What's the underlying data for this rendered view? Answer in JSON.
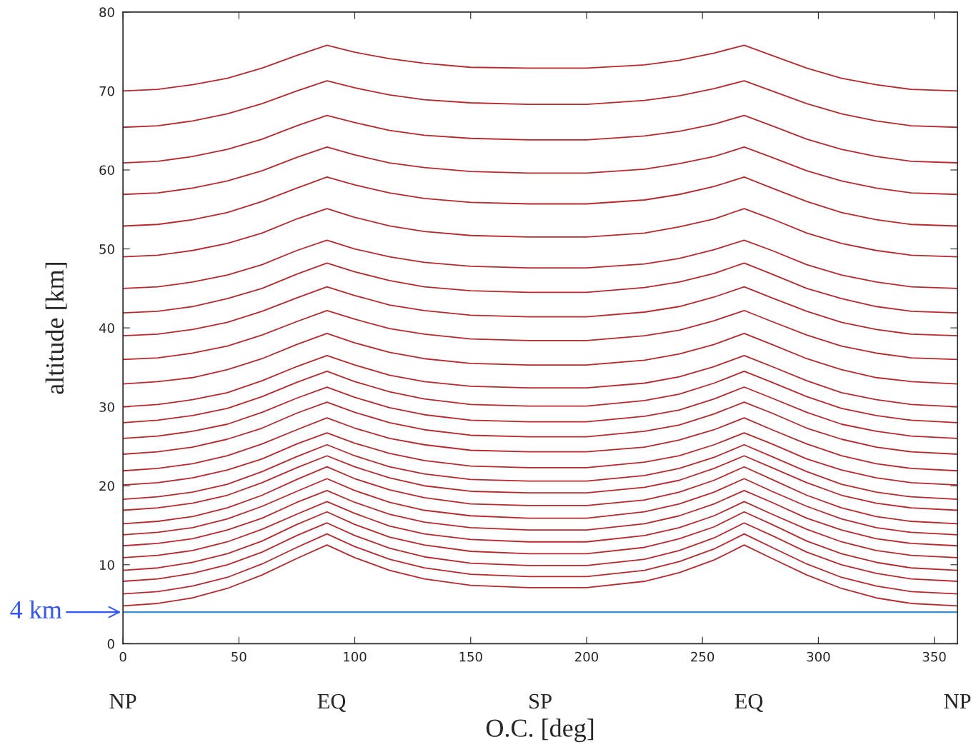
{
  "chart_data": {
    "type": "line",
    "xlabel": "O.C. [deg]",
    "ylabel": "altitude [km]",
    "x": [
      0,
      15,
      30,
      45,
      60,
      75,
      88,
      100,
      115,
      130,
      150,
      175,
      200,
      225,
      240,
      255,
      268,
      280,
      295,
      310,
      325,
      340,
      360
    ],
    "xlim": [
      0,
      360
    ],
    "xticks": [
      0,
      50,
      100,
      150,
      200,
      250,
      300,
      350
    ],
    "ylim": [
      0,
      80
    ],
    "yticks": [
      0,
      10,
      20,
      30,
      40,
      50,
      60,
      70,
      80
    ],
    "grid": false,
    "legend": false,
    "marker": "none",
    "line_style": "solid",
    "ref_lines": [
      {
        "axis": "y",
        "value": 4,
        "label": "4 km",
        "color": "#3a8fd0"
      }
    ],
    "annotations": [
      "NP",
      "EQ",
      "SP",
      "EQ",
      "NP"
    ],
    "series": [
      {
        "color": "#b8282d",
        "values": [
          70.0,
          70.2,
          70.8,
          71.6,
          72.9,
          74.5,
          75.8,
          74.9,
          74.1,
          73.5,
          73.0,
          72.9,
          72.9,
          73.3,
          73.9,
          74.8,
          75.8,
          74.5,
          72.9,
          71.6,
          70.8,
          70.2,
          70.0
        ]
      },
      {
        "color": "#b8282d",
        "values": [
          65.4,
          65.6,
          66.2,
          67.1,
          68.4,
          70.0,
          71.3,
          70.4,
          69.5,
          68.9,
          68.5,
          68.3,
          68.3,
          68.8,
          69.4,
          70.3,
          71.3,
          70.0,
          68.4,
          67.1,
          66.2,
          65.6,
          65.4
        ]
      },
      {
        "color": "#b8282d",
        "values": [
          60.9,
          61.1,
          61.7,
          62.6,
          63.9,
          65.6,
          66.9,
          66.0,
          65.0,
          64.4,
          64.0,
          63.8,
          63.8,
          64.3,
          64.9,
          65.8,
          66.9,
          65.6,
          63.9,
          62.6,
          61.7,
          61.1,
          60.9
        ]
      },
      {
        "color": "#b8282d",
        "values": [
          56.9,
          57.1,
          57.7,
          58.6,
          59.9,
          61.6,
          62.9,
          61.9,
          60.9,
          60.3,
          59.8,
          59.6,
          59.6,
          60.1,
          60.8,
          61.7,
          62.9,
          61.6,
          59.9,
          58.6,
          57.7,
          57.1,
          56.9
        ]
      },
      {
        "color": "#b8282d",
        "values": [
          52.9,
          53.1,
          53.7,
          54.6,
          56.0,
          57.7,
          59.1,
          58.1,
          57.1,
          56.4,
          55.9,
          55.7,
          55.7,
          56.2,
          56.9,
          57.9,
          59.1,
          57.7,
          56.0,
          54.6,
          53.7,
          53.1,
          52.9
        ]
      },
      {
        "color": "#b8282d",
        "values": [
          49.0,
          49.2,
          49.8,
          50.7,
          52.0,
          53.8,
          55.1,
          54.0,
          52.9,
          52.2,
          51.7,
          51.5,
          51.5,
          52.0,
          52.8,
          53.8,
          55.1,
          53.8,
          52.0,
          50.7,
          49.8,
          49.2,
          49.0
        ]
      },
      {
        "color": "#b8282d",
        "values": [
          45.0,
          45.2,
          45.8,
          46.7,
          48.0,
          49.8,
          51.1,
          50.0,
          49.0,
          48.3,
          47.8,
          47.6,
          47.6,
          48.1,
          48.8,
          49.9,
          51.1,
          49.8,
          48.0,
          46.7,
          45.8,
          45.2,
          45.0
        ]
      },
      {
        "color": "#b8282d",
        "values": [
          41.9,
          42.1,
          42.7,
          43.7,
          45.0,
          46.8,
          48.2,
          47.1,
          46.0,
          45.2,
          44.7,
          44.5,
          44.5,
          45.1,
          45.8,
          46.9,
          48.2,
          46.8,
          45.0,
          43.7,
          42.7,
          42.1,
          41.9
        ]
      },
      {
        "color": "#b8282d",
        "values": [
          39.0,
          39.2,
          39.8,
          40.7,
          42.1,
          43.8,
          45.2,
          44.1,
          42.9,
          42.2,
          41.6,
          41.4,
          41.4,
          42.0,
          42.7,
          43.9,
          45.2,
          43.8,
          42.1,
          40.7,
          39.8,
          39.2,
          39.0
        ]
      },
      {
        "color": "#b8282d",
        "values": [
          36.0,
          36.2,
          36.8,
          37.7,
          39.1,
          40.8,
          42.2,
          41.1,
          39.9,
          39.2,
          38.6,
          38.4,
          38.4,
          39.0,
          39.7,
          40.9,
          42.2,
          40.8,
          39.1,
          37.7,
          36.8,
          36.2,
          36.0
        ]
      },
      {
        "color": "#b8282d",
        "values": [
          32.9,
          33.2,
          33.7,
          34.7,
          36.1,
          37.9,
          39.3,
          38.1,
          36.9,
          36.1,
          35.5,
          35.3,
          35.3,
          35.9,
          36.7,
          37.9,
          39.3,
          37.9,
          36.1,
          34.7,
          33.7,
          33.2,
          32.9
        ]
      },
      {
        "color": "#b8282d",
        "values": [
          30.0,
          30.3,
          30.9,
          31.8,
          33.3,
          35.1,
          36.5,
          35.3,
          34.0,
          33.2,
          32.6,
          32.4,
          32.4,
          33.0,
          33.8,
          35.1,
          36.5,
          35.1,
          33.3,
          31.8,
          30.9,
          30.3,
          30.0
        ]
      },
      {
        "color": "#b8282d",
        "values": [
          28.0,
          28.3,
          28.9,
          29.8,
          31.3,
          33.1,
          34.5,
          33.2,
          31.9,
          31.0,
          30.3,
          30.1,
          30.1,
          30.8,
          31.6,
          33.0,
          34.5,
          33.1,
          31.3,
          29.8,
          28.9,
          28.3,
          28.0
        ]
      },
      {
        "color": "#b8282d",
        "values": [
          26.0,
          26.3,
          26.9,
          27.8,
          29.3,
          31.1,
          32.5,
          31.2,
          29.9,
          29.0,
          28.3,
          28.1,
          28.1,
          28.8,
          29.6,
          31.0,
          32.5,
          31.1,
          29.3,
          27.8,
          26.9,
          26.3,
          26.0
        ]
      },
      {
        "color": "#b8282d",
        "values": [
          24.0,
          24.3,
          24.9,
          25.9,
          27.3,
          29.2,
          30.6,
          29.3,
          28.0,
          27.1,
          26.4,
          26.2,
          26.2,
          26.9,
          27.7,
          29.1,
          30.6,
          29.2,
          27.3,
          25.9,
          24.9,
          24.3,
          24.0
        ]
      },
      {
        "color": "#b8282d",
        "values": [
          21.9,
          22.2,
          22.8,
          23.8,
          25.3,
          27.1,
          28.6,
          27.3,
          26.0,
          25.2,
          24.5,
          24.3,
          24.3,
          24.9,
          25.8,
          27.1,
          28.6,
          27.1,
          25.3,
          23.8,
          22.8,
          22.2,
          21.9
        ]
      },
      {
        "color": "#b8282d",
        "values": [
          20.1,
          20.4,
          21.0,
          22.0,
          23.4,
          25.3,
          26.7,
          25.4,
          24.1,
          23.2,
          22.5,
          22.3,
          22.3,
          23.0,
          23.8,
          25.2,
          26.7,
          25.3,
          23.4,
          22.0,
          21.0,
          20.4,
          20.1
        ]
      },
      {
        "color": "#b8282d",
        "values": [
          18.3,
          18.6,
          19.2,
          20.2,
          21.8,
          23.7,
          25.2,
          23.8,
          22.4,
          21.5,
          20.8,
          20.6,
          20.6,
          21.3,
          22.2,
          23.6,
          25.2,
          23.7,
          21.8,
          20.2,
          19.2,
          18.6,
          18.3
        ]
      },
      {
        "color": "#b8282d",
        "values": [
          16.9,
          17.2,
          17.8,
          18.8,
          20.4,
          22.3,
          23.8,
          22.4,
          21.0,
          20.0,
          19.3,
          19.1,
          19.1,
          19.8,
          20.7,
          22.2,
          23.8,
          22.3,
          20.4,
          18.8,
          17.8,
          17.2,
          16.9
        ]
      },
      {
        "color": "#b8282d",
        "values": [
          15.2,
          15.5,
          16.1,
          17.2,
          18.8,
          20.8,
          22.4,
          20.9,
          19.5,
          18.5,
          17.7,
          17.5,
          17.5,
          18.2,
          19.2,
          20.7,
          22.4,
          20.8,
          18.8,
          17.2,
          16.1,
          15.5,
          15.2
        ]
      },
      {
        "color": "#b8282d",
        "values": [
          13.8,
          14.1,
          14.7,
          15.8,
          17.4,
          19.3,
          20.9,
          19.4,
          17.9,
          16.9,
          16.2,
          15.9,
          15.9,
          16.7,
          17.7,
          19.2,
          20.9,
          19.3,
          17.4,
          15.8,
          14.7,
          14.1,
          13.8
        ]
      },
      {
        "color": "#b8282d",
        "values": [
          12.4,
          12.7,
          13.3,
          14.4,
          15.9,
          17.9,
          19.4,
          17.9,
          16.4,
          15.4,
          14.7,
          14.4,
          14.4,
          15.2,
          16.2,
          17.7,
          19.4,
          17.9,
          15.9,
          14.4,
          13.3,
          12.7,
          12.4
        ]
      },
      {
        "color": "#b8282d",
        "values": [
          10.9,
          11.2,
          11.8,
          12.9,
          14.5,
          16.4,
          18.0,
          16.5,
          14.9,
          13.9,
          13.2,
          12.9,
          12.9,
          13.7,
          14.7,
          16.2,
          18.0,
          16.4,
          14.5,
          12.9,
          11.8,
          11.2,
          10.9
        ]
      },
      {
        "color": "#b8282d",
        "values": [
          9.3,
          9.6,
          10.3,
          11.4,
          13.0,
          15.1,
          16.7,
          15.1,
          13.5,
          12.5,
          11.7,
          11.4,
          11.4,
          12.2,
          13.3,
          14.8,
          16.7,
          15.1,
          13.0,
          11.4,
          10.3,
          9.6,
          9.3
        ]
      },
      {
        "color": "#b8282d",
        "values": [
          7.9,
          8.2,
          8.9,
          10.0,
          11.6,
          13.7,
          15.3,
          13.7,
          12.1,
          11.0,
          10.2,
          9.9,
          9.9,
          10.7,
          11.8,
          13.4,
          15.3,
          13.7,
          11.6,
          10.0,
          8.9,
          8.2,
          7.9
        ]
      },
      {
        "color": "#b8282d",
        "values": [
          6.3,
          6.6,
          7.3,
          8.4,
          10.1,
          12.2,
          13.9,
          12.3,
          10.7,
          9.6,
          8.8,
          8.5,
          8.5,
          9.3,
          10.4,
          12.0,
          13.9,
          12.2,
          10.1,
          8.4,
          7.3,
          6.6,
          6.3
        ]
      },
      {
        "color": "#b8282d",
        "values": [
          4.8,
          5.1,
          5.8,
          7.0,
          8.7,
          10.8,
          12.5,
          10.9,
          9.3,
          8.2,
          7.4,
          7.1,
          7.1,
          7.9,
          9.0,
          10.6,
          12.5,
          10.8,
          8.7,
          7.0,
          5.8,
          5.1,
          4.8
        ]
      }
    ]
  }
}
